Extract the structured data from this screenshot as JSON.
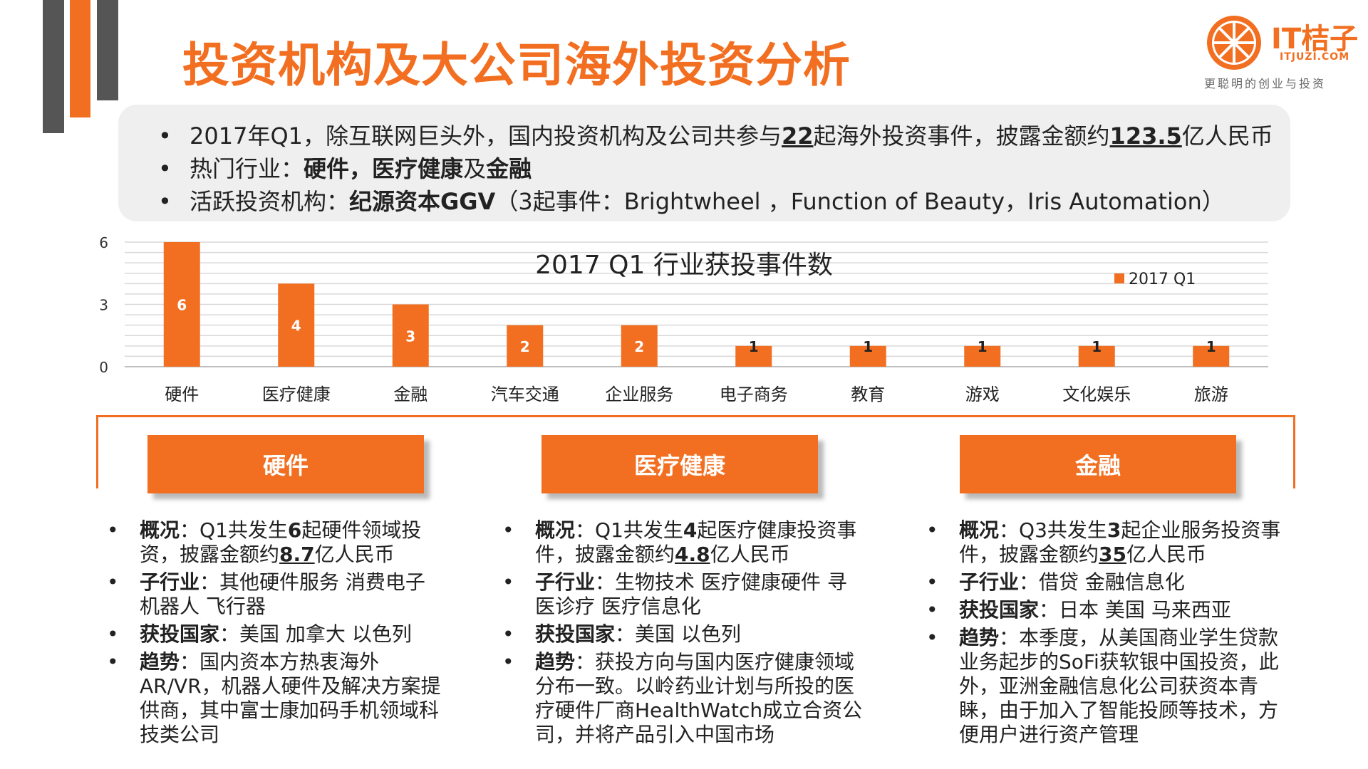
{
  "colors": {
    "accent": "#f26f21",
    "dark_bar": "#555555",
    "panel": "#efefef",
    "grid": "#d9d9d9"
  },
  "title": "投资机构及大公司海外投资分析",
  "logo": {
    "brand": "IT桔子",
    "site": "ITJUZI.COM",
    "slogan": "更聪明的创业与投资",
    "icon": "orange-slice-icon"
  },
  "summary": {
    "line1": {
      "pre": "2017年Q1，除互联网巨头外，国内投资机构及公司共参与",
      "n1": "22",
      "mid": "起海外投资事件，披露金额约",
      "n2": "123.5",
      "post": "亿人民币"
    },
    "line2": {
      "pre": "热门行业：",
      "a": "硬件",
      "sep": "，",
      "b": "医疗健康",
      "and": "及",
      "c": "金融"
    },
    "line3": {
      "pre": "活跃投资机构：",
      "bold": "纪源资本GGV",
      "post": "（3起事件：Brightwheel ，Function of Beauty，Iris Automation）"
    }
  },
  "chart_data": {
    "type": "bar",
    "title": "2017 Q1 行业获投事件数",
    "legend": [
      "2017 Q1"
    ],
    "legend_position": "top-right",
    "categories": [
      "硬件",
      "医疗健康",
      "金融",
      "汽车交通",
      "企业服务",
      "电子商务",
      "教育",
      "游戏",
      "文化娱乐",
      "旅游"
    ],
    "series": [
      {
        "name": "2017 Q1",
        "values": [
          6,
          4,
          3,
          2,
          2,
          1,
          1,
          1,
          1,
          1
        ]
      }
    ],
    "yticks": [
      0,
      3,
      6
    ],
    "ylim": [
      0,
      6
    ],
    "grid": true,
    "data_labels": true
  },
  "cards": [
    {
      "header": "硬件",
      "items": [
        {
          "label": "概况",
          "sep": "：",
          "pre": "Q1共发生",
          "num": "6",
          "mid": "起硬件领域投资，披露金额约",
          "num2": "8.7",
          "post": "亿人民币"
        },
        {
          "label": "子行业",
          "sep": "：",
          "text": "其他硬件服务 消费电子 机器人 飞行器"
        },
        {
          "label": "获投国家",
          "sep": "：",
          "text": "美国 加拿大 以色列"
        },
        {
          "label": "趋势",
          "sep": "：",
          "text": "国内资本方热衷海外AR/VR，机器人硬件及解决方案提供商，其中富士康加码手机领域科技类公司"
        }
      ]
    },
    {
      "header": "医疗健康",
      "items": [
        {
          "label": "概况",
          "sep": "：",
          "pre": "Q1共发生",
          "num": "4",
          "mid": "起医疗健康投资事件，披露金额约",
          "num2": "4.8",
          "post": "亿人民币"
        },
        {
          "label": "子行业",
          "sep": "：",
          "text": "生物技术 医疗健康硬件 寻医诊疗 医疗信息化"
        },
        {
          "label": "获投国家",
          "sep": "：",
          "text": "美国 以色列"
        },
        {
          "label": "趋势",
          "sep": "：",
          "text": "获投方向与国内医疗健康领域分布一致。以岭药业计划与所投的医疗硬件厂商HealthWatch成立合资公司，并将产品引入中国市场"
        }
      ]
    },
    {
      "header": "金融",
      "items": [
        {
          "label": "概况",
          "sep": "：",
          "pre": "Q3共发生",
          "num": "3",
          "mid": "起企业服务投资事件，披露金额约",
          "num2": "35",
          "post": "亿人民币"
        },
        {
          "label": "子行业",
          "sep": "：",
          "text": "借贷 金融信息化"
        },
        {
          "label": "获投国家",
          "sep": "：",
          "text": "日本 美国 马来西亚"
        },
        {
          "label": "趋势",
          "sep": "：",
          "text": "本季度，从美国商业学生贷款业务起步的SoFi获软银中国投资，此外，亚洲金融信息化公司获资本青睐，由于加入了智能投顾等技术，方便用户进行资产管理"
        }
      ]
    }
  ]
}
